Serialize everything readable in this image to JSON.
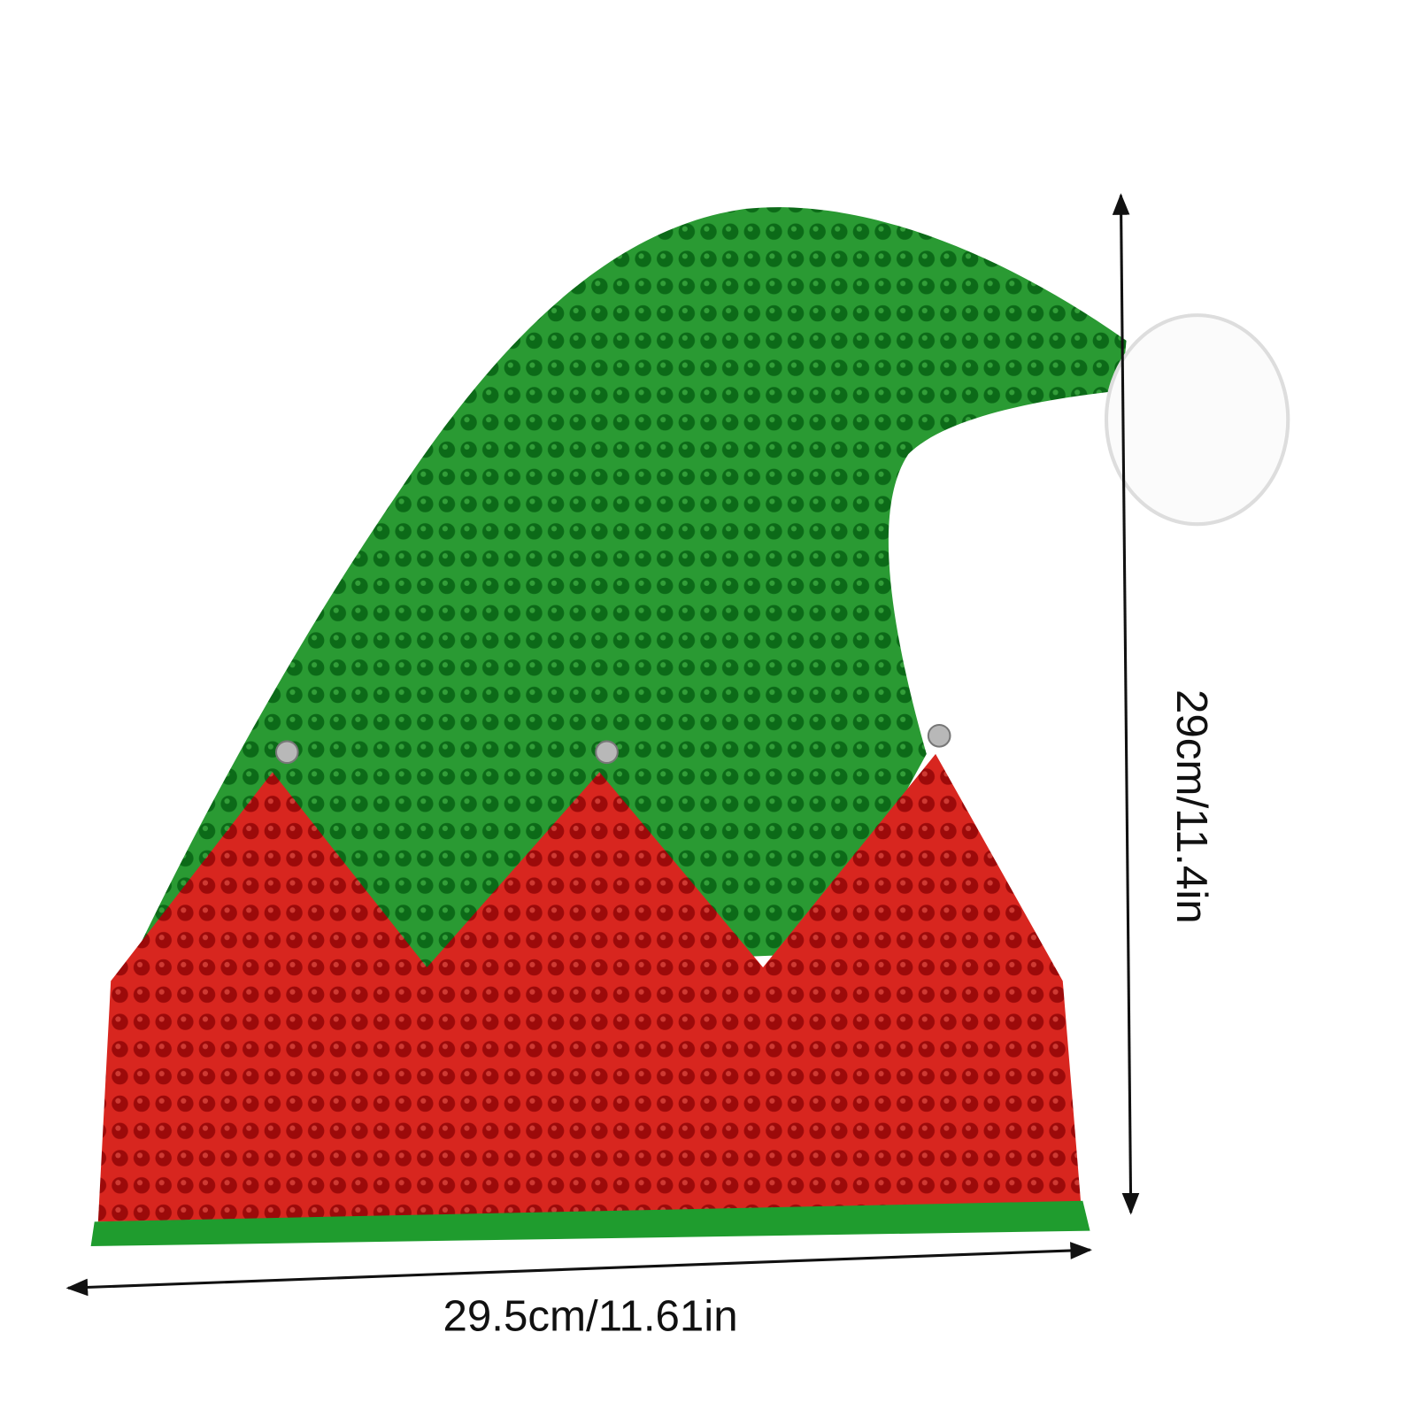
{
  "width_label": "29.5cm/11.61in",
  "height_label": "29cm/11.4in"
}
